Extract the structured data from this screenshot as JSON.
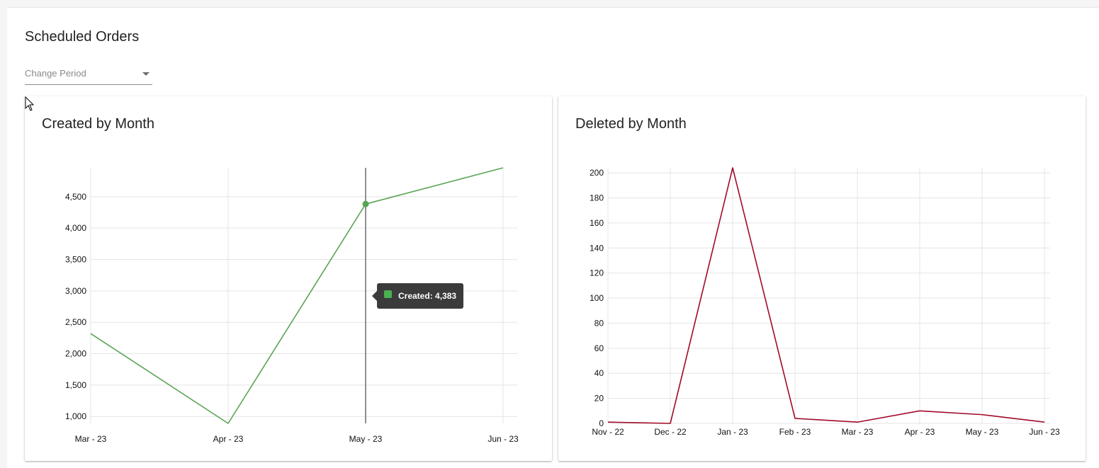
{
  "page": {
    "title": "Scheduled Orders"
  },
  "period_select": {
    "placeholder": "Change Period"
  },
  "chart_data": [
    {
      "type": "line",
      "title": "Created by Month",
      "xlabel": "",
      "ylabel": "",
      "categories": [
        "Mar - 23",
        "Apr - 23",
        "May - 23",
        "Jun - 23"
      ],
      "series": [
        {
          "name": "Created",
          "values": [
            2320,
            890,
            4383,
            4960
          ],
          "color": "#5aa454"
        }
      ],
      "yticks": [
        1000,
        1500,
        2000,
        2500,
        3000,
        3500,
        4000,
        4500
      ],
      "ytick_labels": [
        "1,000",
        "1,500",
        "2,000",
        "2,500",
        "3,000",
        "3,500",
        "4,000",
        "4,500"
      ],
      "ylim": [
        890,
        4960
      ],
      "grid": true,
      "highlight_index": 2,
      "tooltip": {
        "label": "Created",
        "value": "4,383"
      }
    },
    {
      "type": "line",
      "title": "Deleted by Month",
      "xlabel": "",
      "ylabel": "",
      "categories": [
        "Nov - 22",
        "Dec - 22",
        "Jan - 23",
        "Feb - 23",
        "Mar - 23",
        "Apr - 23",
        "May - 23",
        "Jun - 23"
      ],
      "series": [
        {
          "name": "Deleted",
          "values": [
            1,
            0,
            204,
            4,
            1,
            10,
            7,
            1
          ],
          "color": "#a10a28"
        }
      ],
      "yticks": [
        0,
        20,
        40,
        60,
        80,
        100,
        120,
        140,
        160,
        180,
        200
      ],
      "ytick_labels": [
        "0",
        "20",
        "40",
        "60",
        "80",
        "100",
        "120",
        "140",
        "160",
        "180",
        "200"
      ],
      "ylim": [
        0,
        204
      ],
      "grid": true
    }
  ]
}
